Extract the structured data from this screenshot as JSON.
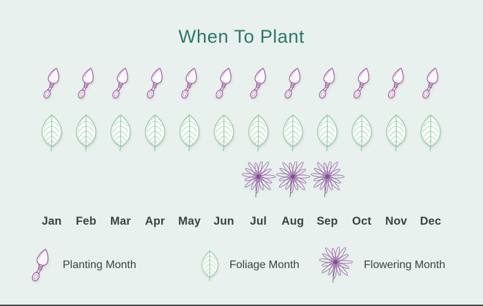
{
  "page": {
    "title": "When To Plant"
  },
  "theme": {
    "background": "#e9f1ee",
    "title_color": "#28796a",
    "text_color": "#3c4043",
    "planting_color": "#9c4f9c",
    "foliage_color": "#8cc39b",
    "flowering_color": "#8a4a9c",
    "divider_color": "#414644"
  },
  "chart_data": {
    "type": "pictogram",
    "title": "When To Plant",
    "categories": [
      "Jan",
      "Feb",
      "Mar",
      "Apr",
      "May",
      "Jun",
      "Jul",
      "Aug",
      "Sep",
      "Oct",
      "Nov",
      "Dec"
    ],
    "series": [
      {
        "name": "Planting Month",
        "icon": "trowel-icon",
        "months": [
          "Jan",
          "Feb",
          "Mar",
          "Apr",
          "May",
          "Jun",
          "Jul",
          "Aug",
          "Sep",
          "Oct",
          "Nov",
          "Dec"
        ]
      },
      {
        "name": "Foliage Month",
        "icon": "leaf-icon",
        "months": [
          "Jan",
          "Feb",
          "Mar",
          "Apr",
          "May",
          "Jun",
          "Jul",
          "Aug",
          "Sep",
          "Oct",
          "Nov",
          "Dec"
        ]
      },
      {
        "name": "Flowering Month",
        "icon": "flower-icon",
        "months": [
          "Jul",
          "Aug",
          "Sep"
        ]
      }
    ],
    "legend_position": "bottom"
  },
  "legend": {
    "items": [
      {
        "label": "Planting Month",
        "icon": "trowel-icon"
      },
      {
        "label": "Foliage Month",
        "icon": "leaf-icon"
      },
      {
        "label": "Flowering Month",
        "icon": "flower-icon"
      }
    ]
  }
}
